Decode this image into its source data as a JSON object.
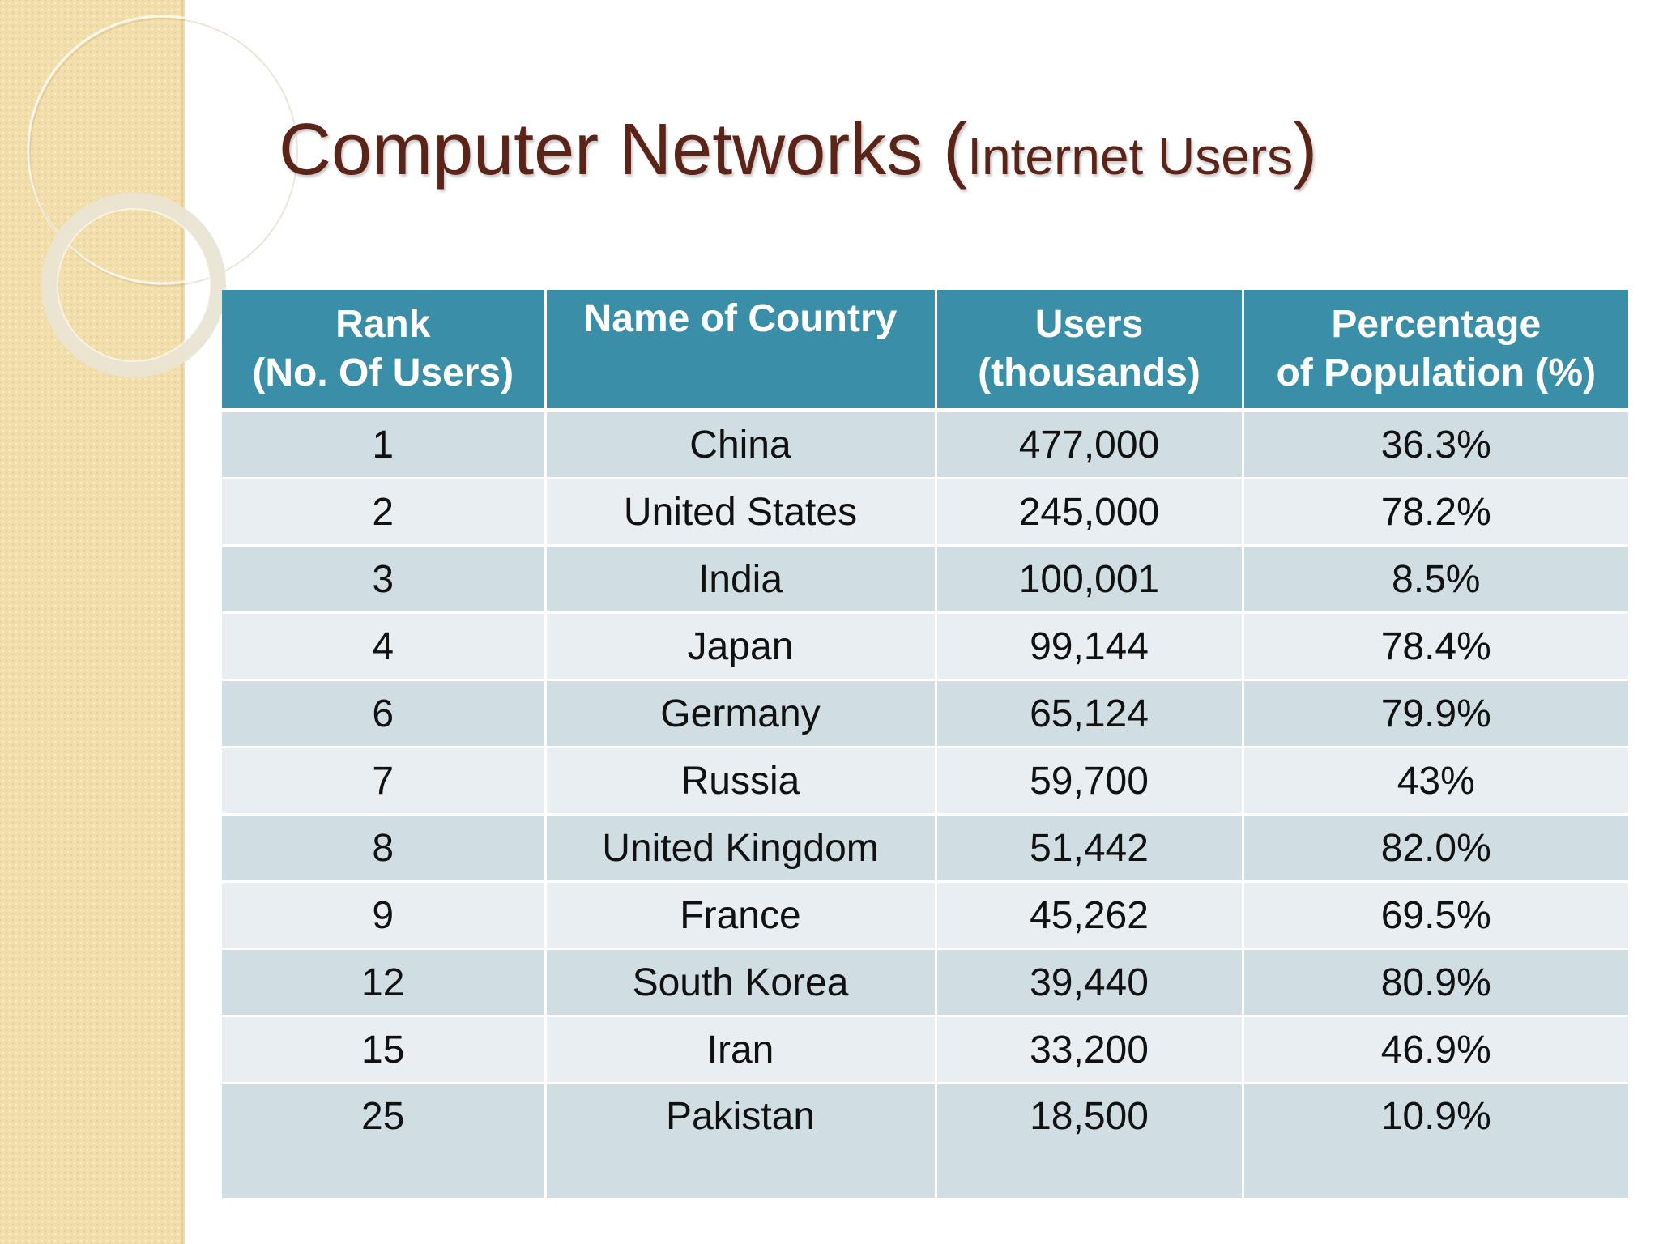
{
  "slide": {
    "title_main": "Computer Networks ",
    "title_open_paren": "(",
    "title_sub": "Internet Users",
    "title_close_paren": ")"
  },
  "table": {
    "headers": [
      {
        "line1": "Rank",
        "line2": "(No. Of Users)"
      },
      {
        "line1": "Name of Country",
        "line2": ""
      },
      {
        "line1": "Users",
        "line2": "(thousands)"
      },
      {
        "line1": "Percentage",
        "line2": "of Population (%)"
      }
    ],
    "rows": [
      {
        "rank": "1",
        "country": "China",
        "users": "477,000",
        "percentage": "36.3%"
      },
      {
        "rank": "2",
        "country": "United States",
        "users": "245,000",
        "percentage": "78.2%"
      },
      {
        "rank": "3",
        "country": "India",
        "users": "100,001",
        "percentage": "8.5%"
      },
      {
        "rank": "4",
        "country": "Japan",
        "users": "99,144",
        "percentage": "78.4%"
      },
      {
        "rank": "6",
        "country": "Germany",
        "users": "65,124",
        "percentage": "79.9%"
      },
      {
        "rank": "7",
        "country": "Russia",
        "users": "59,700",
        "percentage": "43%"
      },
      {
        "rank": "8",
        "country": "United Kingdom",
        "users": "51,442",
        "percentage": "82.0%"
      },
      {
        "rank": "9",
        "country": "France",
        "users": "45,262",
        "percentage": "69.5%"
      },
      {
        "rank": "12",
        "country": "South Korea",
        "users": "39,440",
        "percentage": "80.9%"
      },
      {
        "rank": "15",
        "country": "Iran",
        "users": "33,200",
        "percentage": "46.9%"
      },
      {
        "rank": "25",
        "country": "Pakistan",
        "users": "18,500",
        "percentage": "10.9%"
      }
    ]
  },
  "colors": {
    "title": "#5b2418",
    "header_bg": "#3a8ea8",
    "row_dark": "#d0dee3",
    "row_light": "#e8eef1",
    "sidebar": "#f2deaa"
  }
}
